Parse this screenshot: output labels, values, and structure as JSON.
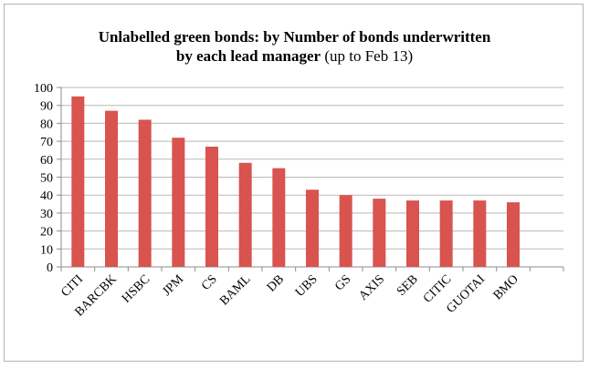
{
  "chart_data": {
    "type": "bar",
    "title_bold_line1": "Unlabelled green bonds: by Number of bonds underwritten",
    "title_bold_line2": "by each lead manager",
    "title_normal_line2": " (up to Feb 13)",
    "categories": [
      "CITI",
      "BARCBK",
      "HSBC",
      "JPM",
      "CS",
      "BAML",
      "DB",
      "UBS",
      "GS",
      "AXIS",
      "SEB",
      "CITIC",
      "GUOTAI",
      "BMO"
    ],
    "values": [
      95,
      87,
      82,
      72,
      67,
      58,
      55,
      43,
      40,
      38,
      37,
      37,
      37,
      36
    ],
    "ylim": [
      0,
      100
    ],
    "yticks": [
      "0",
      "10",
      "20",
      "30",
      "40",
      "50",
      "60",
      "70",
      "80",
      "90",
      "100"
    ],
    "grid": true,
    "bar_color": "#d9534f",
    "xlabel": "",
    "ylabel": ""
  }
}
